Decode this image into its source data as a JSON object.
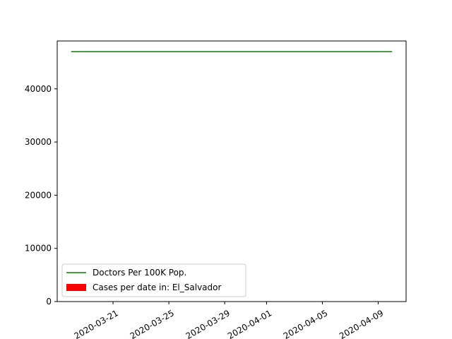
{
  "chart_data": {
    "type": "line",
    "title": "",
    "xlabel": "",
    "ylabel": "",
    "x_range": [
      "2020-03-17",
      "2020-04-11"
    ],
    "ylim": [
      0,
      49000
    ],
    "x_ticks": [
      "2020-03-21",
      "2020-03-25",
      "2020-03-29",
      "2020-04-01",
      "2020-04-05",
      "2020-04-09"
    ],
    "y_ticks": [
      0,
      10000,
      20000,
      30000,
      40000
    ],
    "grid": false,
    "legend": "lower-left",
    "series": [
      {
        "name": "Doctors Per 100K Pop.",
        "kind": "line",
        "color": "#008000",
        "x": [
          "2020-03-18",
          "2020-04-10"
        ],
        "y": [
          47000,
          47000
        ]
      },
      {
        "name": "Cases per date in: El_Salvador",
        "kind": "bar",
        "color": "#ff0000",
        "x": [],
        "y": []
      }
    ]
  }
}
